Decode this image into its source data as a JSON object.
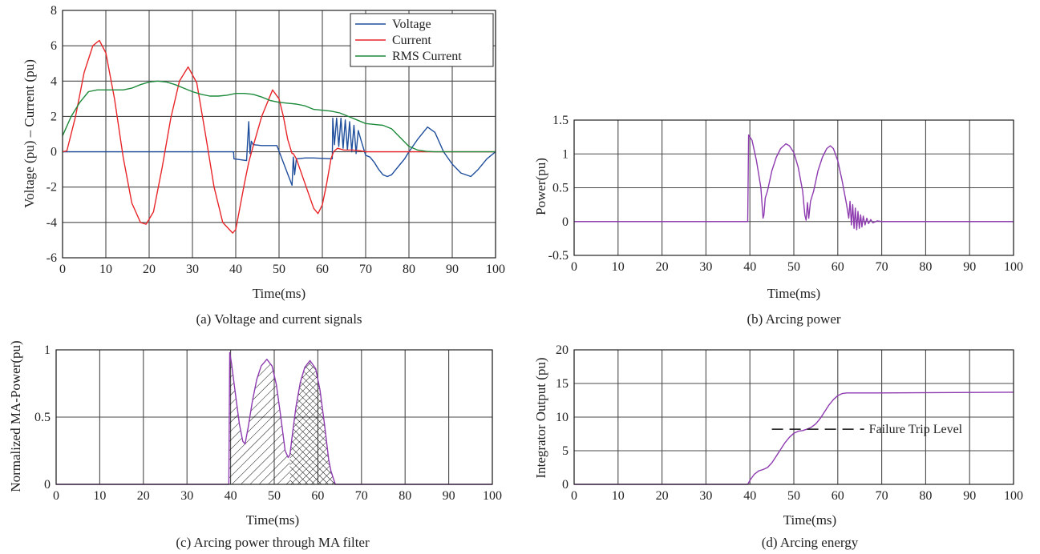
{
  "chart_data": [
    {
      "id": "a",
      "type": "line",
      "caption": "(a) Voltage and current signals",
      "xlabel": "Time(ms)",
      "ylabel": "Voltage (pu) – Current (pu)",
      "xlim": [
        0,
        100
      ],
      "ylim": [
        -6,
        8
      ],
      "xticks": [
        0,
        10,
        20,
        30,
        40,
        50,
        60,
        70,
        80,
        90,
        100
      ],
      "yticks": [
        -6,
        -4,
        -2,
        0,
        2,
        4,
        6,
        8
      ],
      "grid": true,
      "legend_position": "top-right",
      "series": [
        {
          "name": "Voltage",
          "color": "#1f4e9c",
          "x": [
            0,
            39.5,
            39.6,
            42.5,
            43,
            43.3,
            43.6,
            44,
            46,
            49.5,
            53,
            53.3,
            53.6,
            54,
            56,
            58,
            62.3,
            62.4,
            62.8,
            63.3,
            63.8,
            64.3,
            64.8,
            65.3,
            65.8,
            66.3,
            66.8,
            67.3,
            67.8,
            68.3,
            69,
            70,
            71,
            72,
            73,
            74,
            75,
            76,
            77,
            78,
            79,
            80,
            82,
            84.3,
            86,
            88,
            90,
            92,
            94.3,
            96,
            98,
            100
          ],
          "y": [
            0,
            0,
            -0.4,
            -0.5,
            1.7,
            -0.1,
            0.6,
            0.4,
            0.35,
            0.35,
            -1.9,
            -0.3,
            -1.3,
            -0.4,
            -0.35,
            -0.35,
            -0.4,
            1.9,
            0.4,
            1.9,
            0.3,
            1.9,
            0.2,
            1.8,
            0.1,
            1.7,
            0.0,
            1.5,
            -0.1,
            1.2,
            0.6,
            -0.2,
            -0.3,
            -0.6,
            -1.0,
            -1.3,
            -1.4,
            -1.3,
            -1.0,
            -0.7,
            -0.4,
            0.0,
            0.7,
            1.4,
            1.1,
            0.0,
            -0.7,
            -1.2,
            -1.4,
            -1.0,
            -0.4,
            0.0
          ]
        },
        {
          "name": "Current",
          "color": "#e8262a",
          "x": [
            0,
            1,
            3,
            5,
            7,
            8.5,
            10,
            12,
            14,
            16,
            18,
            19.3,
            21,
            23,
            25,
            27,
            29,
            31,
            33,
            35,
            37,
            39.3,
            40,
            41,
            42,
            43,
            44,
            46,
            48.5,
            50,
            51,
            52,
            53,
            53.3,
            54,
            56,
            58,
            59,
            60,
            61,
            62,
            62.6,
            63.5,
            65,
            67,
            69,
            70,
            72,
            75,
            100
          ],
          "y": [
            0,
            0.05,
            2.0,
            4.5,
            6.0,
            6.3,
            5.6,
            3.0,
            -0.3,
            -2.9,
            -4.0,
            -4.1,
            -3.4,
            -0.9,
            1.9,
            4.0,
            4.8,
            3.9,
            1.0,
            -2.0,
            -4.0,
            -4.6,
            -4.4,
            -3.1,
            -1.8,
            -0.6,
            0.3,
            2.0,
            3.5,
            3.0,
            2.0,
            0.7,
            -0.1,
            -0.1,
            -0.4,
            -1.8,
            -3.2,
            -3.5,
            -3.0,
            -1.8,
            -0.4,
            0.0,
            0.2,
            0.1,
            0.1,
            0.05,
            0.0,
            0.0,
            0.0,
            0.0
          ]
        },
        {
          "name": "RMS Current",
          "color": "#1e8a3c",
          "x": [
            0,
            2,
            4,
            6,
            8,
            10,
            12,
            14,
            16,
            18,
            20,
            22,
            24,
            26,
            28,
            30,
            32,
            34,
            36,
            38,
            40,
            42,
            44,
            46,
            48,
            50,
            52,
            54,
            56,
            58,
            60,
            62,
            64,
            66,
            68,
            70,
            72,
            74,
            76,
            78,
            80,
            82,
            84,
            86,
            100
          ],
          "y": [
            0.9,
            2.0,
            2.8,
            3.4,
            3.5,
            3.5,
            3.5,
            3.5,
            3.6,
            3.8,
            3.95,
            4.0,
            3.95,
            3.8,
            3.6,
            3.4,
            3.25,
            3.15,
            3.15,
            3.2,
            3.3,
            3.3,
            3.25,
            3.1,
            2.9,
            2.8,
            2.75,
            2.7,
            2.6,
            2.4,
            2.35,
            2.3,
            2.2,
            2.0,
            1.8,
            1.6,
            1.55,
            1.5,
            1.3,
            0.8,
            0.3,
            0.1,
            0.02,
            0.0,
            0.0
          ]
        }
      ]
    },
    {
      "id": "b",
      "type": "line",
      "caption": "(b) Arcing power",
      "xlabel": "Time(ms)",
      "ylabel": "Power(pu)",
      "xlim": [
        0,
        100
      ],
      "ylim": [
        -0.5,
        1.5
      ],
      "xticks": [
        0,
        10,
        20,
        30,
        40,
        50,
        60,
        70,
        80,
        90,
        100
      ],
      "yticks": [
        -0.5,
        0,
        0.5,
        1,
        1.5
      ],
      "ytick_labels": [
        "-0.5",
        "0",
        "0.5",
        "1",
        "1.5"
      ],
      "grid": true,
      "series": [
        {
          "name": "",
          "color": "#8e3bb0",
          "x": [
            0,
            39.5,
            39.7,
            40.5,
            41.5,
            42.5,
            43,
            43.2,
            43.5,
            44,
            45,
            46,
            47,
            48.2,
            49,
            50,
            51,
            52,
            52.5,
            52.8,
            53.1,
            53.4,
            53.8,
            54.5,
            55.5,
            56.5,
            57.5,
            58.3,
            59,
            60,
            61,
            62,
            62.5,
            62.8,
            63.1,
            63.4,
            63.7,
            64,
            64.3,
            64.6,
            64.9,
            65.2,
            65.5,
            65.8,
            66.2,
            66.6,
            67,
            67.5,
            68,
            69,
            70,
            72,
            100
          ],
          "y": [
            0,
            0,
            1.28,
            1.2,
            0.9,
            0.5,
            0.05,
            0.1,
            0.35,
            0.45,
            0.75,
            0.95,
            1.08,
            1.15,
            1.12,
            1.02,
            0.8,
            0.45,
            0.1,
            0.02,
            0.28,
            0.05,
            0.3,
            0.45,
            0.75,
            0.95,
            1.08,
            1.12,
            1.08,
            0.9,
            0.6,
            0.25,
            0.05,
            0.3,
            -0.05,
            0.25,
            -0.1,
            0.2,
            -0.12,
            0.15,
            -0.1,
            0.1,
            -0.08,
            0.08,
            -0.05,
            0.05,
            -0.03,
            0.03,
            -0.02,
            0.01,
            0,
            0,
            0
          ]
        }
      ]
    },
    {
      "id": "c",
      "type": "area",
      "caption": "(c) Arcing power through MA filter",
      "xlabel": "Time(ms)",
      "ylabel": "Normalized MA-Power(pu)",
      "xlim": [
        0,
        100
      ],
      "ylim": [
        0,
        1
      ],
      "xticks": [
        0,
        10,
        20,
        30,
        40,
        50,
        60,
        70,
        80,
        90,
        100
      ],
      "yticks": [
        0,
        0.5,
        1
      ],
      "ytick_labels": [
        "0",
        "0.5",
        "1"
      ],
      "grid": true,
      "series": [
        {
          "name": "",
          "color": "#8e3bb0",
          "x": [
            0,
            39.6,
            39.8,
            40.2,
            41,
            42,
            42.8,
            43.3,
            44,
            45,
            46,
            47,
            48.3,
            49.5,
            50.5,
            51.5,
            52.5,
            53.2,
            53.6,
            54.2,
            55,
            56,
            57,
            58.2,
            59.5,
            60.5,
            61.5,
            62.5,
            63,
            63.5,
            64,
            100
          ],
          "y": [
            0,
            0,
            0.98,
            0.9,
            0.7,
            0.45,
            0.32,
            0.3,
            0.42,
            0.62,
            0.78,
            0.88,
            0.93,
            0.88,
            0.74,
            0.5,
            0.25,
            0.2,
            0.22,
            0.38,
            0.58,
            0.76,
            0.87,
            0.92,
            0.86,
            0.7,
            0.45,
            0.18,
            0.1,
            0.05,
            0,
            0
          ]
        }
      ],
      "hatched_regions": [
        {
          "x_range": [
            39.6,
            53.6
          ],
          "pattern": "diagonal"
        },
        {
          "x_range": [
            53.6,
            64
          ],
          "pattern": "crosshatch"
        }
      ]
    },
    {
      "id": "d",
      "type": "line",
      "caption": "(d) Arcing energy",
      "xlabel": "Time(ms)",
      "ylabel": "Integrator Output (pu)",
      "xlim": [
        0,
        100
      ],
      "ylim": [
        0,
        20
      ],
      "xticks": [
        0,
        10,
        20,
        30,
        40,
        50,
        60,
        70,
        80,
        90,
        100
      ],
      "yticks": [
        0,
        5,
        10,
        15,
        20
      ],
      "grid": true,
      "annotation": "Failure Trip Level",
      "threshold": 8.2,
      "threshold_x": [
        45,
        66
      ],
      "series": [
        {
          "name": "",
          "color": "#8e3bb0",
          "x": [
            0,
            39.5,
            40,
            41,
            42,
            43,
            44,
            45,
            46,
            47,
            48,
            49,
            50,
            51,
            52,
            53,
            54,
            55,
            56,
            57,
            58,
            59,
            60,
            61,
            62,
            63,
            65,
            70,
            100
          ],
          "y": [
            0,
            0,
            0.6,
            1.5,
            2.0,
            2.2,
            2.5,
            3.2,
            4.2,
            5.2,
            6.2,
            7.0,
            7.6,
            7.9,
            8.0,
            8.2,
            8.5,
            9.0,
            9.8,
            10.8,
            11.8,
            12.6,
            13.2,
            13.5,
            13.6,
            13.6,
            13.6,
            13.6,
            13.7
          ]
        }
      ]
    }
  ]
}
